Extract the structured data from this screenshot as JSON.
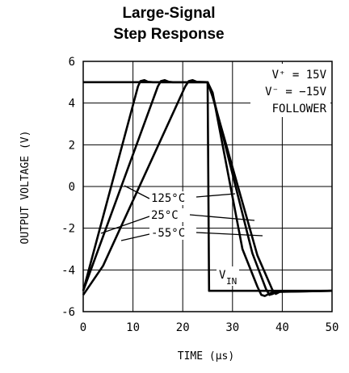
{
  "chart_data": {
    "type": "line",
    "title_line1": "Large-Signal",
    "title_line2": "Step Response",
    "xlabel": "TIME (μs)",
    "ylabel": "OUTPUT VOLTAGE (V)",
    "xlim": [
      0,
      50
    ],
    "ylim": [
      -6,
      6
    ],
    "xticks": [
      "0",
      "10",
      "20",
      "30",
      "40",
      "50"
    ],
    "yticks": [
      "6",
      "4",
      "2",
      "0",
      "-2",
      "-4",
      "-6"
    ],
    "grid": true,
    "legend_box": {
      "vplus": "V⁺ = 15V",
      "vminus": "V⁻ = −15V",
      "mode": "FOLLOWER"
    },
    "series": [
      {
        "name": "V_IN",
        "x": [
          0,
          25,
          25.3,
          50
        ],
        "y": [
          5,
          5,
          -5,
          -5
        ]
      },
      {
        "name": "125°C",
        "x": [
          0,
          11,
          11.5,
          12.3,
          13,
          14,
          25,
          26,
          32,
          35,
          35.8,
          36.5,
          37.3,
          38.5,
          50
        ],
        "y": [
          -5,
          4.8,
          5.05,
          5.1,
          5.02,
          5,
          5,
          4.5,
          -3,
          -4.8,
          -5.2,
          -5.25,
          -5.15,
          -5.05,
          -5
        ]
      },
      {
        "name": "25°C",
        "x": [
          0,
          15,
          15.6,
          16.4,
          17.2,
          18,
          25,
          26,
          34,
          36.7,
          37.4,
          38.1,
          39,
          50
        ],
        "y": [
          -5,
          4.8,
          5.05,
          5.1,
          5.02,
          5,
          5,
          4.4,
          -3.2,
          -4.9,
          -5.2,
          -5.15,
          -5.02,
          -5
        ]
      },
      {
        "name": "-55°C",
        "x": [
          0,
          4,
          20.5,
          21.2,
          22,
          22.8,
          25,
          26,
          35,
          38,
          38.7,
          39.5,
          50
        ],
        "y": [
          -5.2,
          -3.8,
          4.8,
          5.05,
          5.1,
          5.02,
          5,
          4.3,
          -3.3,
          -4.95,
          -5.15,
          -5.05,
          -5
        ]
      }
    ],
    "labels": [
      "125°C",
      "25°C",
      "-55°C"
    ],
    "vin_label": "V",
    "vin_sub": "IN"
  }
}
